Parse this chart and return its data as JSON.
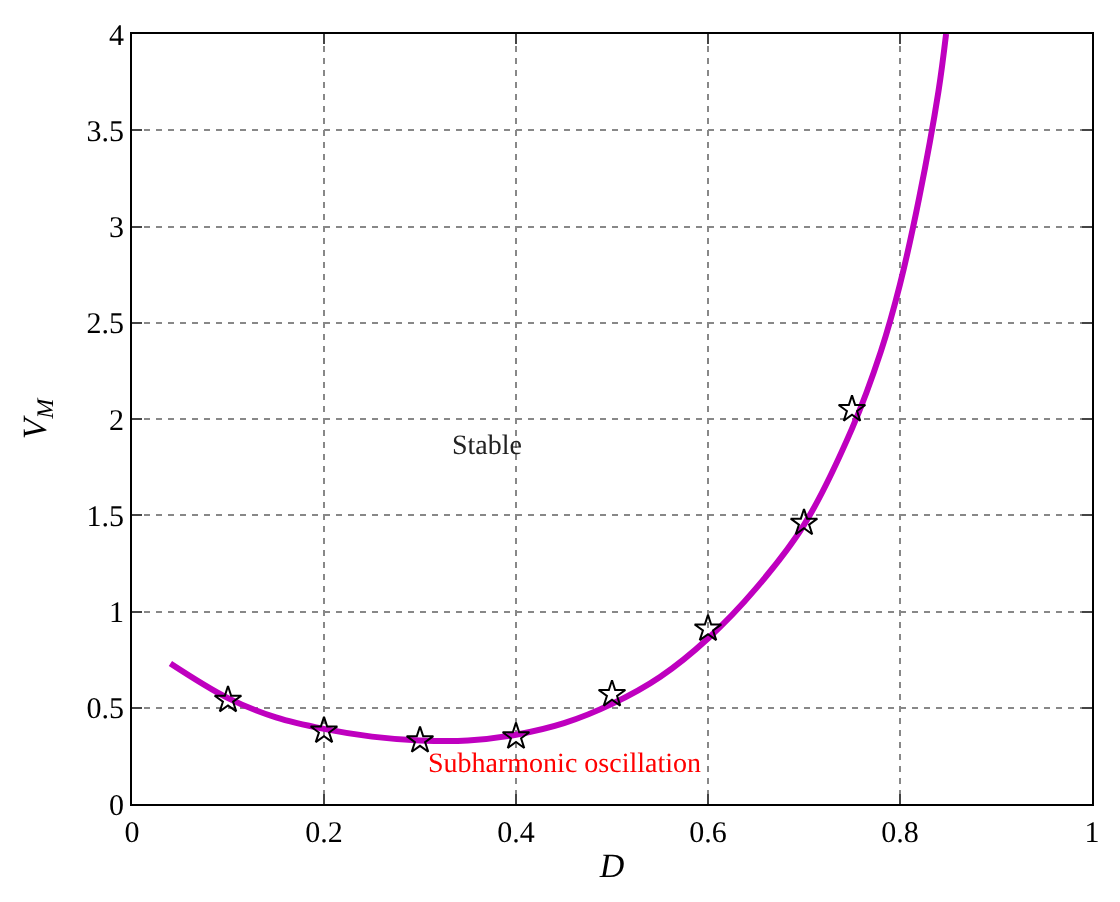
{
  "chart_data": {
    "type": "line",
    "xlabel": "D",
    "ylabel": "V$_{M}$",
    "xlim": [
      0,
      1
    ],
    "xticks": [
      0,
      0.2,
      0.4,
      0.6,
      0.8,
      1
    ],
    "ylim": [
      0,
      4
    ],
    "yticks": [
      0,
      0.5,
      1,
      1.5,
      2,
      2.5,
      3,
      3.5,
      4
    ],
    "grid": true,
    "series": [
      {
        "color": "#bf00bf",
        "marker": "none",
        "line_style": "solid",
        "x": [
          0.04,
          0.1,
          0.15,
          0.2,
          0.25,
          0.3,
          0.35,
          0.4,
          0.45,
          0.5,
          0.55,
          0.6,
          0.65,
          0.7,
          0.75,
          0.78,
          0.8,
          0.82,
          0.84,
          0.848
        ],
        "values": [
          0.73,
          0.55,
          0.45,
          0.39,
          0.35,
          0.33,
          0.33,
          0.36,
          0.42,
          0.52,
          0.66,
          0.86,
          1.12,
          1.45,
          1.95,
          2.35,
          2.7,
          3.15,
          3.7,
          4.0
        ]
      },
      {
        "type": "scatter",
        "color": "#000000",
        "marker": "star",
        "x": [
          0.1,
          0.2,
          0.3,
          0.4,
          0.5,
          0.6,
          0.7,
          0.75
        ],
        "values": [
          0.54,
          0.38,
          0.33,
          0.35,
          0.57,
          0.91,
          1.46,
          2.05
        ]
      }
    ],
    "annotations": [
      "Stable",
      "Subharmonic oscillation"
    ]
  }
}
